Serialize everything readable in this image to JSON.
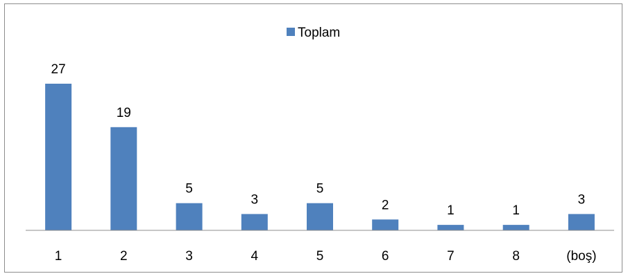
{
  "chart_data": {
    "type": "bar",
    "title": "",
    "xlabel": "",
    "ylabel": "",
    "categories": [
      "1",
      "2",
      "3",
      "4",
      "5",
      "6",
      "7",
      "8",
      "(boş)"
    ],
    "series": [
      {
        "name": "Toplam",
        "values": [
          27,
          19,
          5,
          3,
          5,
          2,
          1,
          1,
          3
        ],
        "color": "#4f81bd"
      }
    ],
    "data_labels": [
      "27",
      "19",
      "5",
      "3",
      "5",
      "2",
      "1",
      "1",
      "3"
    ],
    "ylim": [
      0,
      27
    ],
    "grid": false,
    "legend": "top-center",
    "axis_color": "#8c8c8c"
  }
}
